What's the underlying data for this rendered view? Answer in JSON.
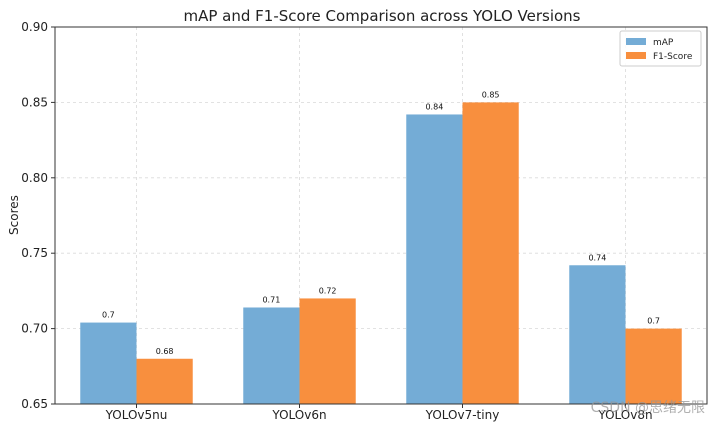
{
  "chart_data": {
    "type": "bar",
    "title": "mAP and F1-Score Comparison across YOLO Versions",
    "xlabel": "",
    "ylabel": "Scores",
    "categories": [
      "YOLOv5nu",
      "YOLOv6n",
      "YOLOv7-tiny",
      "YOLOv8n"
    ],
    "series": [
      {
        "name": "mAP",
        "values": [
          0.704,
          0.714,
          0.842,
          0.742
        ],
        "labels": [
          "0.7",
          "0.71",
          "0.84",
          "0.74"
        ],
        "color": "#74acd6"
      },
      {
        "name": "F1-Score",
        "values": [
          0.68,
          0.72,
          0.85,
          0.7
        ],
        "labels": [
          "0.68",
          "0.72",
          "0.85",
          "0.7"
        ],
        "color": "#f88f3e"
      }
    ],
    "ylim": [
      0.65,
      0.9
    ],
    "yticks": [
      "0.65",
      "0.70",
      "0.75",
      "0.80",
      "0.85",
      "0.90"
    ],
    "grid": true,
    "legend_position": "top-right"
  },
  "watermark": "CSDN @思绪无限"
}
